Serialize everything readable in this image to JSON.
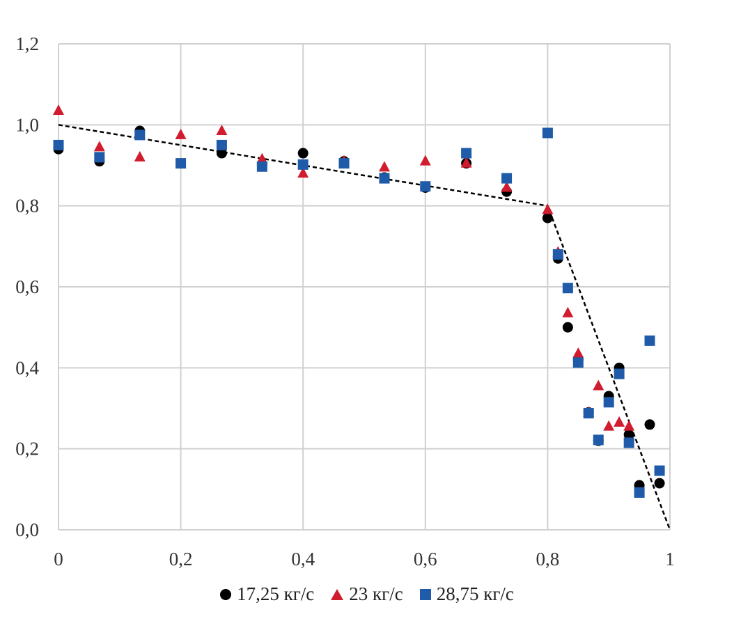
{
  "chart_data": {
    "type": "scatter",
    "title": "",
    "xlabel": "",
    "ylabel": "",
    "xlim": [
      0,
      1
    ],
    "ylim": [
      0,
      1.2
    ],
    "x_ticks": [
      "0",
      "0,2",
      "0,4",
      "0,6",
      "0,8",
      "1"
    ],
    "y_ticks": [
      "0,0",
      "0,2",
      "0,4",
      "0,6",
      "0,8",
      "1,0",
      "1,2"
    ],
    "grid": true,
    "legend_position": "bottom",
    "series": [
      {
        "name": "17,25 кг/с",
        "marker": "circle",
        "color": "#000000",
        "x": [
          0,
          0.067,
          0.133,
          0.267,
          0.333,
          0.4,
          0.467,
          0.533,
          0.6,
          0.667,
          0.733,
          0.8,
          0.817,
          0.833,
          0.85,
          0.867,
          0.883,
          0.9,
          0.917,
          0.933,
          0.95,
          0.967,
          0.983
        ],
        "y": [
          0.94,
          0.91,
          0.985,
          0.93,
          0.9,
          0.93,
          0.91,
          0.87,
          0.845,
          0.905,
          0.835,
          0.77,
          0.67,
          0.5,
          0.42,
          0.29,
          0.22,
          0.33,
          0.4,
          0.235,
          0.11,
          0.26,
          0.115
        ]
      },
      {
        "name": "23 кг/с",
        "marker": "triangle",
        "color": "#d01c2e",
        "x": [
          0,
          0.067,
          0.133,
          0.2,
          0.267,
          0.333,
          0.4,
          0.467,
          0.533,
          0.6,
          0.667,
          0.733,
          0.8,
          0.817,
          0.833,
          0.85,
          0.867,
          0.883,
          0.9,
          0.917,
          0.933
        ],
        "y": [
          1.035,
          0.945,
          0.92,
          0.975,
          0.985,
          0.915,
          0.88,
          0.91,
          0.895,
          0.91,
          0.905,
          0.845,
          0.79,
          0.685,
          0.535,
          0.435,
          0.29,
          0.355,
          0.255,
          0.265,
          0.255
        ]
      },
      {
        "name": "28,75 кг/с",
        "marker": "square",
        "color": "#1f5ba8",
        "x": [
          0,
          0.067,
          0.133,
          0.2,
          0.267,
          0.333,
          0.4,
          0.467,
          0.533,
          0.6,
          0.667,
          0.733,
          0.8,
          0.817,
          0.833,
          0.85,
          0.867,
          0.883,
          0.9,
          0.917,
          0.933,
          0.95,
          0.967,
          0.983
        ],
        "y": [
          0.95,
          0.92,
          0.975,
          0.905,
          0.95,
          0.897,
          0.902,
          0.905,
          0.868,
          0.848,
          0.93,
          0.868,
          0.98,
          0.68,
          0.597,
          0.413,
          0.288,
          0.222,
          0.315,
          0.385,
          0.215,
          0.092,
          0.467,
          0.146
        ]
      }
    ],
    "trend_line": {
      "style": "dashed",
      "color": "#000000",
      "points": [
        [
          0,
          1.0
        ],
        [
          0.8,
          0.8
        ],
        [
          1.0,
          0.0
        ]
      ]
    }
  }
}
